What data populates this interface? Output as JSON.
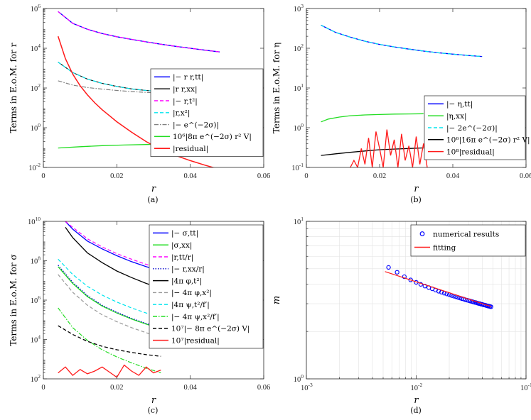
{
  "chart_data": [
    {
      "type": "line",
      "panel": "a",
      "caption": "(a)",
      "xlabel": "r",
      "ylabel": "Terms in E.o.M. for r",
      "xscale": "linear",
      "yscale": "log",
      "xlim": [
        0,
        0.06
      ],
      "ylim": [
        0.01,
        1000000
      ],
      "xticks": [
        0,
        0.02,
        0.04,
        0.06
      ],
      "xticklabels": [
        "0",
        "0.02",
        "0.04",
        "0.06"
      ],
      "yticks": [
        0.01,
        1,
        100,
        10000,
        1000000
      ],
      "ytick_base": [
        "10",
        "10",
        "10",
        "10",
        "10"
      ],
      "ytick_exp": [
        "-2",
        "0",
        "2",
        "4",
        "6"
      ],
      "legend_position": "center-right",
      "series": [
        {
          "name": "|− r r,tt|",
          "color": "#0000ff",
          "dash": "solid",
          "width": 1.3,
          "x": [
            0.004,
            0.008,
            0.012,
            0.016,
            0.02,
            0.024,
            0.028,
            0.032,
            0.036,
            0.04,
            0.044,
            0.048
          ],
          "y": [
            700000,
            180000,
            90000,
            55000,
            38000,
            28000,
            21000,
            16000,
            12500,
            10000,
            8000,
            6500
          ]
        },
        {
          "name": "|r r,xx|",
          "color": "#000000",
          "dash": "solid",
          "width": 1.1,
          "x": [
            0.004,
            0.008,
            0.012,
            0.016,
            0.02,
            0.024,
            0.028,
            0.032
          ],
          "y": [
            2000,
            600,
            280,
            170,
            120,
            90,
            75,
            65
          ]
        },
        {
          "name": "|− r,t²|",
          "color": "#ff00ff",
          "dash": "dashed",
          "width": 1.2,
          "x": [
            0.004,
            0.008,
            0.012,
            0.016,
            0.02,
            0.024,
            0.028,
            0.032,
            0.036,
            0.04,
            0.044,
            0.048
          ],
          "y": [
            700000,
            180000,
            90000,
            55000,
            38000,
            28000,
            21000,
            16000,
            12500,
            10000,
            8000,
            6500
          ]
        },
        {
          "name": "|r,x²|",
          "color": "#00e5ee",
          "dash": "dashed",
          "width": 1.2,
          "x": [
            0.004,
            0.008,
            0.012,
            0.016,
            0.02,
            0.024,
            0.028,
            0.032
          ],
          "y": [
            2000,
            600,
            280,
            170,
            120,
            90,
            75,
            65
          ]
        },
        {
          "name": "|− e^(−2σ)|",
          "color": "#808080",
          "dash": "dashdot",
          "width": 1.2,
          "x": [
            0.004,
            0.008,
            0.012,
            0.016,
            0.02,
            0.024,
            0.028,
            0.032
          ],
          "y": [
            230,
            140,
            105,
            88,
            75,
            66,
            60,
            56
          ]
        },
        {
          "name": "10⁶|8π e^(−2σ) r² V|",
          "color": "#22dd22",
          "dash": "solid",
          "width": 1.3,
          "x": [
            0.004,
            0.01,
            0.016,
            0.022,
            0.028,
            0.032
          ],
          "y": [
            0.095,
            0.11,
            0.125,
            0.135,
            0.142,
            0.148
          ]
        },
        {
          "name": "|residual|",
          "color": "#ff1a1a",
          "dash": "solid",
          "width": 1.5,
          "x": [
            0.004,
            0.006,
            0.008,
            0.01,
            0.012,
            0.014,
            0.016,
            0.018,
            0.02,
            0.024,
            0.028,
            0.032,
            0.036,
            0.04,
            0.044,
            0.048
          ],
          "y": [
            40000,
            3000,
            500,
            130,
            45,
            18,
            8,
            4,
            2,
            0.6,
            0.2,
            0.08,
            0.04,
            0.022,
            0.013,
            0.008
          ]
        }
      ]
    },
    {
      "type": "line",
      "panel": "b",
      "caption": "(b)",
      "xlabel": "r",
      "ylabel": "Terms in E.o.M. for η",
      "xscale": "linear",
      "yscale": "log",
      "xlim": [
        0,
        0.06
      ],
      "ylim": [
        0.1,
        1000
      ],
      "xticks": [
        0,
        0.02,
        0.04,
        0.06
      ],
      "xticklabels": [
        "0",
        "0.02",
        "0.04",
        "0.06"
      ],
      "yticks": [
        0.1,
        1,
        10,
        100,
        1000
      ],
      "ytick_base": [
        "10",
        "10",
        "10",
        "10",
        "10"
      ],
      "ytick_exp": [
        "-1",
        "0",
        "1",
        "2",
        "3"
      ],
      "legend_position": "center-right",
      "series": [
        {
          "name": "|− η,tt|",
          "color": "#0000ff",
          "dash": "solid",
          "width": 1.3,
          "x": [
            0.004,
            0.008,
            0.012,
            0.016,
            0.02,
            0.024,
            0.028,
            0.032,
            0.036,
            0.04,
            0.044,
            0.048
          ],
          "y": [
            380,
            250,
            190,
            150,
            125,
            108,
            95,
            85,
            77,
            71,
            66,
            62
          ]
        },
        {
          "name": "|η,xx|",
          "color": "#22dd22",
          "dash": "solid",
          "width": 1.3,
          "x": [
            0.004,
            0.006,
            0.009,
            0.012,
            0.016,
            0.02,
            0.024,
            0.028,
            0.032
          ],
          "y": [
            1.4,
            1.65,
            1.85,
            2.0,
            2.1,
            2.15,
            2.2,
            2.22,
            2.25
          ]
        },
        {
          "name": "|− 2e^(−2σ)|",
          "color": "#00e5ee",
          "dash": "dashed",
          "width": 1.2,
          "x": [
            0.004,
            0.008,
            0.012,
            0.016,
            0.02,
            0.024,
            0.028,
            0.032,
            0.036,
            0.04,
            0.044,
            0.048
          ],
          "y": [
            380,
            250,
            190,
            150,
            125,
            108,
            95,
            85,
            77,
            71,
            66,
            62
          ]
        },
        {
          "name": "10⁶|16π e^(−2σ) r² V|",
          "color": "#000000",
          "dash": "solid",
          "width": 1.3,
          "x": [
            0.004,
            0.008,
            0.012,
            0.016,
            0.02,
            0.024,
            0.028,
            0.032
          ],
          "y": [
            0.2,
            0.22,
            0.24,
            0.26,
            0.28,
            0.29,
            0.3,
            0.31
          ]
        },
        {
          "name": "10⁸|residual|",
          "color": "#ff1a1a",
          "dash": "solid",
          "width": 1.3,
          "x": [
            0.012,
            0.013,
            0.014,
            0.015,
            0.016,
            0.017,
            0.018,
            0.019,
            0.02,
            0.021,
            0.022,
            0.023,
            0.024,
            0.025,
            0.026,
            0.027,
            0.028,
            0.029,
            0.03,
            0.031,
            0.032,
            0.033
          ],
          "y": [
            0.1,
            0.15,
            0.1,
            0.3,
            0.12,
            0.55,
            0.1,
            0.8,
            0.3,
            0.1,
            0.9,
            0.2,
            0.5,
            0.1,
            0.7,
            0.15,
            0.35,
            0.1,
            0.6,
            0.12,
            0.4,
            0.1
          ]
        }
      ]
    },
    {
      "type": "line",
      "panel": "c",
      "caption": "(c)",
      "xlabel": "r",
      "ylabel": "Terms in E.o.M. for σ",
      "xscale": "linear",
      "yscale": "log",
      "xlim": [
        0,
        0.06
      ],
      "ylim": [
        100,
        10000000000
      ],
      "xticks": [
        0,
        0.02,
        0.04,
        0.06
      ],
      "xticklabels": [
        "0",
        "0.02",
        "0.04",
        "0.06"
      ],
      "yticks": [
        100,
        10000,
        1000000,
        100000000,
        10000000000
      ],
      "ytick_base": [
        "10",
        "10",
        "10",
        "10",
        "10"
      ],
      "ytick_exp": [
        "2",
        "4",
        "6",
        "8",
        "10"
      ],
      "legend_position": "center-right",
      "series": [
        {
          "name": "|− σ,tt|",
          "color": "#0000ff",
          "dash": "solid",
          "width": 1.3,
          "x": [
            0.006,
            0.008,
            0.012,
            0.016,
            0.02,
            0.024,
            0.028,
            0.032
          ],
          "y": [
            10000000000,
            4000000000,
            1000000000,
            400000000,
            180000000,
            90000000,
            50000000,
            30000000
          ]
        },
        {
          "name": "|σ,xx|",
          "color": "#22dd22",
          "dash": "solid",
          "width": 1.3,
          "x": [
            0.004,
            0.008,
            0.012,
            0.016,
            0.02,
            0.024,
            0.028,
            0.032
          ],
          "y": [
            50000000,
            7000000,
            1500000,
            500000,
            220000,
            110000,
            60000,
            35000
          ]
        },
        {
          "name": "|r,tt/r|",
          "color": "#ff00ff",
          "dash": "dashed",
          "width": 1.2,
          "x": [
            0.006,
            0.008,
            0.012,
            0.016,
            0.02,
            0.024,
            0.028,
            0.032
          ],
          "y": [
            10000000000,
            5000000000,
            1300000000,
            500000000,
            230000000,
            120000000,
            65000000,
            40000000
          ]
        },
        {
          "name": "|− r,xx/r|",
          "color": "#0000cc",
          "dash": "dotted",
          "width": 1.2,
          "x": [
            0.004,
            0.008,
            0.012,
            0.016,
            0.02,
            0.024,
            0.028,
            0.032
          ],
          "y": [
            60000000,
            8000000,
            1700000,
            550000,
            240000,
            120000,
            65000,
            38000
          ]
        },
        {
          "name": "|4π φ,t²|",
          "color": "#000000",
          "dash": "solid",
          "width": 1.3,
          "x": [
            0.006,
            0.008,
            0.012,
            0.016,
            0.02,
            0.024,
            0.028,
            0.032
          ],
          "y": [
            5000000000,
            1500000000,
            250000000,
            80000000,
            30000000,
            14000000,
            7000000,
            4000000
          ]
        },
        {
          "name": "|− 4π φ,x²|",
          "color": "#999999",
          "dash": "dashed",
          "width": 1.2,
          "x": [
            0.004,
            0.008,
            0.012,
            0.016,
            0.02,
            0.024,
            0.028,
            0.032
          ],
          "y": [
            20000000,
            2500000,
            550000,
            180000,
            80000,
            40000,
            22000,
            13000
          ]
        },
        {
          "name": "|4π ψ,t²/f′|",
          "color": "#00e5ee",
          "dash": "dashed",
          "width": 1.2,
          "x": [
            0.004,
            0.008,
            0.012,
            0.016,
            0.02,
            0.024,
            0.028,
            0.032
          ],
          "y": [
            120000000,
            20000000,
            5000000,
            1800000,
            800000,
            400000,
            220000,
            130000
          ]
        },
        {
          "name": "|− 4π ψ,x²/f′|",
          "color": "#22dd22",
          "dash": "dashdot",
          "width": 1.2,
          "x": [
            0.004,
            0.008,
            0.012,
            0.016,
            0.02,
            0.024,
            0.028,
            0.032
          ],
          "y": [
            400000,
            40000,
            9000,
            3000,
            1300,
            650,
            350,
            200
          ]
        },
        {
          "name": "10⁷|− 8π e^(−2σ) V|",
          "color": "#000000",
          "dash": "dashed",
          "width": 1.3,
          "x": [
            0.004,
            0.008,
            0.012,
            0.016,
            0.02,
            0.024,
            0.028,
            0.032
          ],
          "y": [
            50000,
            18000,
            8000,
            4500,
            3000,
            2200,
            1700,
            1400
          ]
        },
        {
          "name": "10⁷|residual|",
          "color": "#ff1a1a",
          "dash": "solid",
          "width": 1.3,
          "x": [
            0.004,
            0.006,
            0.008,
            0.01,
            0.012,
            0.014,
            0.016,
            0.018,
            0.02,
            0.022,
            0.024,
            0.026,
            0.028,
            0.03,
            0.032
          ],
          "y": [
            200,
            400,
            150,
            300,
            180,
            250,
            400,
            220,
            120,
            500,
            250,
            150,
            400,
            200,
            280
          ]
        }
      ]
    },
    {
      "type": "scatter",
      "panel": "d",
      "caption": "(d)",
      "xlabel": "r",
      "ylabel": "m",
      "xscale": "log",
      "yscale": "log",
      "xlim": [
        0.001,
        0.1
      ],
      "ylim": [
        1,
        10
      ],
      "xticks": [
        0.001,
        0.01,
        0.1
      ],
      "x_base": [
        "10",
        "10",
        "10"
      ],
      "x_exp": [
        "-3",
        "-2",
        "-1"
      ],
      "yticks": [
        1,
        10
      ],
      "ytick_base": [
        "10",
        "10"
      ],
      "ytick_exp": [
        "0",
        "1"
      ],
      "grid": true,
      "legend_position": "top-right",
      "series": [
        {
          "name": "numerical results",
          "color": "#0000ff",
          "marker": "circle",
          "x": [
            0.0056,
            0.0067,
            0.0078,
            0.0089,
            0.01,
            0.011,
            0.012,
            0.013,
            0.014,
            0.015,
            0.016,
            0.017,
            0.018,
            0.019,
            0.02,
            0.021,
            0.022,
            0.023,
            0.024,
            0.025,
            0.026,
            0.027,
            0.028,
            0.029,
            0.03,
            0.031,
            0.032,
            0.033,
            0.034,
            0.035,
            0.036,
            0.037,
            0.038,
            0.039,
            0.04,
            0.041,
            0.042,
            0.043,
            0.044,
            0.045,
            0.046,
            0.047,
            0.048
          ],
          "y": [
            5.1,
            4.75,
            4.45,
            4.25,
            4.1,
            3.98,
            3.88,
            3.8,
            3.73,
            3.66,
            3.6,
            3.55,
            3.5,
            3.46,
            3.42,
            3.38,
            3.35,
            3.32,
            3.29,
            3.26,
            3.23,
            3.21,
            3.18,
            3.16,
            3.14,
            3.12,
            3.1,
            3.08,
            3.06,
            3.05,
            3.03,
            3.01,
            3.0,
            2.98,
            2.97,
            2.95,
            2.94,
            2.93,
            2.91,
            2.9,
            2.89,
            2.88,
            2.87
          ]
        },
        {
          "name": "fitting",
          "color": "#ff1a1a",
          "marker": "line",
          "x": [
            0.0052,
            0.048
          ],
          "y": [
            4.8,
            2.88
          ]
        }
      ]
    }
  ]
}
